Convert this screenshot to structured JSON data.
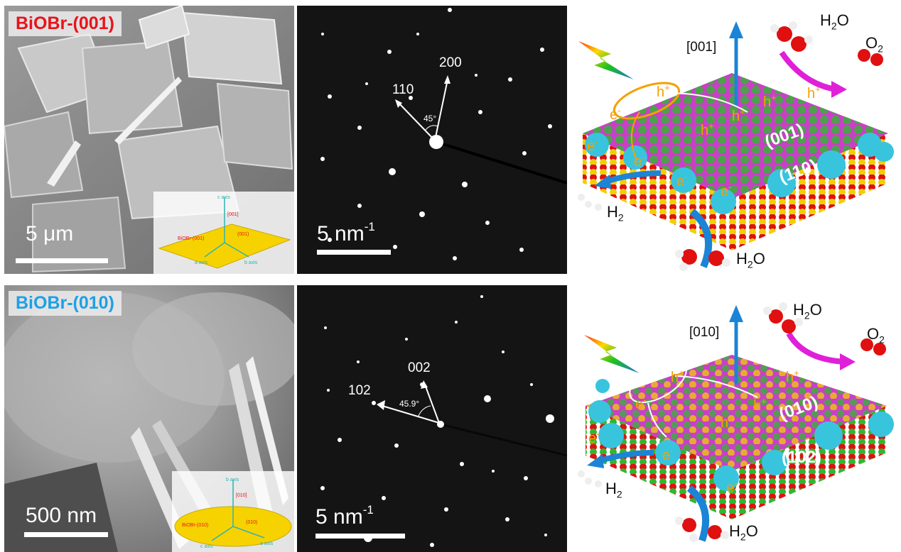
{
  "top_row": {
    "sample_label": "BiOBr-(001)",
    "sem_scalebar": "5 μm",
    "inset": {
      "axis_c": "c axis",
      "axis_a": "a axis",
      "axis_b": "b axis",
      "facet_direction": "[001]",
      "plate_label": "BiOBr-(001)",
      "facet_label": "(001)"
    },
    "saed": {
      "spot_a": "110",
      "spot_b": "200",
      "angle": "45°",
      "scalebar_base": "5 nm",
      "scalebar_sup": "-1"
    },
    "schematic": {
      "direction": "[001]",
      "water_top": "H",
      "water_top_sub": "2",
      "water_top_end": "O",
      "oxygen": "O",
      "oxygen_sub": "2",
      "hydrogen": "H",
      "hydrogen_sub": "2",
      "water_bottom": "H",
      "water_bottom_sub": "2",
      "water_bottom_end": "O",
      "facet_top": "(001)",
      "facet_side": "(110)",
      "hole": "h",
      "hole_sup": "+",
      "electron": "e",
      "electron_sup": "-"
    }
  },
  "bottom_row": {
    "sample_label": "BiOBr-(010)",
    "sem_scalebar": "500 nm",
    "inset": {
      "axis_b": "b axis",
      "axis_c": "c axis",
      "axis_a": "a axis",
      "facet_direction": "[010]",
      "plate_label": "BiOBr-(010)",
      "facet_label": "(010)"
    },
    "saed": {
      "spot_a": "102",
      "spot_b": "002",
      "angle": "45.9°",
      "scalebar_base": "5 nm",
      "scalebar_sup": "-1"
    },
    "schematic": {
      "direction": "[010]",
      "water_top": "H",
      "water_top_sub": "2",
      "water_top_end": "O",
      "oxygen": "O",
      "oxygen_sub": "2",
      "hydrogen": "H",
      "hydrogen_sub": "2",
      "water_bottom": "H",
      "water_bottom_sub": "2",
      "water_bottom_end": "O",
      "facet_top": "(010)",
      "facet_side": "(102)",
      "hole": "h",
      "hole_sup": "+",
      "electron": "e",
      "electron_sup": "-"
    }
  },
  "colors": {
    "label_red": "#e8131b",
    "label_blue": "#1ea0e6",
    "plate_yellow": "#f6d300",
    "crystal_magenta": "#c940c6",
    "atom_green": "#2fb82f",
    "atom_red": "#e01010",
    "atom_yellow": "#f0d000",
    "atom_cyan": "#39c4dd",
    "arrow_blue": "#1b84d6",
    "arrow_magenta": "#e020d8",
    "charge_orange": "#f5a000"
  }
}
